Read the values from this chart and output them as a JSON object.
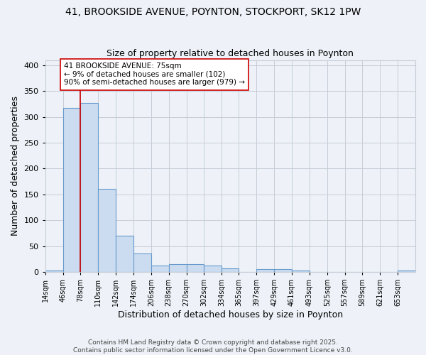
{
  "title1": "41, BROOKSIDE AVENUE, POYNTON, STOCKPORT, SK12 1PW",
  "title2": "Size of property relative to detached houses in Poynton",
  "xlabel": "Distribution of detached houses by size in Poynton",
  "ylabel": "Number of detached properties",
  "bins": [
    14,
    46,
    78,
    110,
    142,
    174,
    206,
    238,
    270,
    302,
    334,
    365,
    397,
    429,
    461,
    493,
    525,
    557,
    589,
    621,
    653,
    685
  ],
  "bin_labels": [
    "14sqm",
    "46sqm",
    "78sqm",
    "110sqm",
    "142sqm",
    "174sqm",
    "206sqm",
    "238sqm",
    "270sqm",
    "302sqm",
    "334sqm",
    "365sqm",
    "397sqm",
    "429sqm",
    "461sqm",
    "493sqm",
    "525sqm",
    "557sqm",
    "589sqm",
    "621sqm",
    "653sqm"
  ],
  "values": [
    3,
    318,
    327,
    160,
    70,
    35,
    12,
    15,
    15,
    12,
    7,
    0,
    5,
    5,
    2,
    0,
    0,
    0,
    0,
    0,
    2
  ],
  "bar_color": "#ccdcf0",
  "bar_edge_color": "#6699cc",
  "vline_x": 78,
  "vline_color": "#cc0000",
  "annotation_text": "41 BROOKSIDE AVENUE: 75sqm\n← 9% of detached houses are smaller (102)\n90% of semi-detached houses are larger (979) →",
  "annotation_box_color": "white",
  "annotation_box_edge": "#cc0000",
  "ylim": [
    0,
    410
  ],
  "yticks": [
    0,
    50,
    100,
    150,
    200,
    250,
    300,
    350,
    400
  ],
  "bg_color": "#eef2f8",
  "grid_color": "#c5cdd8",
  "footer": "Contains HM Land Registry data © Crown copyright and database right 2025.\nContains public sector information licensed under the Open Government Licence v3.0.",
  "title_fontsize": 10,
  "subtitle_fontsize": 9
}
